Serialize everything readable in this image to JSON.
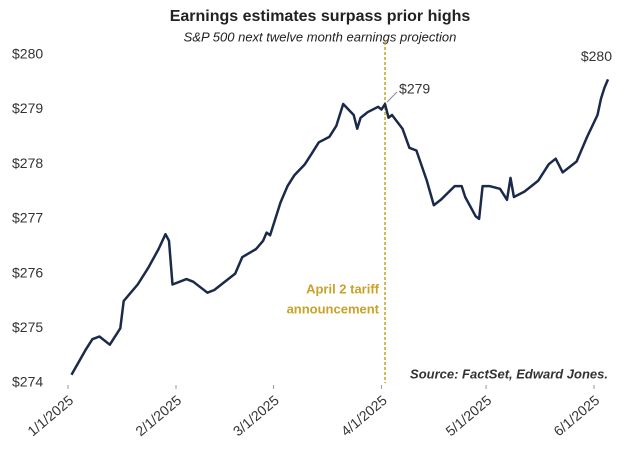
{
  "chart_data": {
    "type": "line",
    "title": "Earnings estimates surpass prior highs",
    "subtitle": "S&P 500 next twelve month earnings projection",
    "source": "Source: FactSet, Edward Jones.",
    "x": [
      "1/2/2025",
      "1/6/2025",
      "1/8/2025",
      "1/10/2025",
      "1/13/2025",
      "1/16/2025",
      "1/17/2025",
      "1/21/2025",
      "1/24/2025",
      "1/27/2025",
      "1/29/2025",
      "1/30/2025",
      "1/31/2025",
      "2/4/2025",
      "2/6/2025",
      "2/10/2025",
      "2/12/2025",
      "2/14/2025",
      "2/18/2025",
      "2/20/2025",
      "2/24/2025",
      "2/26/2025",
      "2/27/2025",
      "2/28/2025",
      "3/3/2025",
      "3/5/2025",
      "3/7/2025",
      "3/10/2025",
      "3/12/2025",
      "3/14/2025",
      "3/17/2025",
      "3/19/2025",
      "3/21/2025",
      "3/24/2025",
      "3/25/2025",
      "3/26/2025",
      "3/27/2025",
      "3/28/2025",
      "3/31/2025",
      "4/1/2025",
      "4/2/2025",
      "4/3/2025",
      "4/4/2025",
      "4/7/2025",
      "4/9/2025",
      "4/11/2025",
      "4/14/2025",
      "4/16/2025",
      "4/18/2025",
      "4/22/2025",
      "4/24/2025",
      "4/25/2025",
      "4/28/2025",
      "4/29/2025",
      "4/30/2025",
      "5/2/2025",
      "5/5/2025",
      "5/7/2025",
      "5/8/2025",
      "5/9/2025",
      "5/12/2025",
      "5/14/2025",
      "5/16/2025",
      "5/19/2025",
      "5/21/2025",
      "5/23/2025",
      "5/27/2025",
      "5/28/2025",
      "5/30/2025",
      "6/2/2025",
      "6/3/2025",
      "6/4/2025",
      "6/5/2025"
    ],
    "series": [
      {
        "name": "S&P 500 NTM earnings",
        "color": "#1b2a4a",
        "values": [
          274.15,
          274.6,
          274.8,
          274.85,
          274.7,
          275.0,
          275.5,
          275.8,
          276.1,
          276.45,
          276.72,
          276.6,
          275.8,
          275.9,
          275.85,
          275.65,
          275.7,
          275.8,
          276.0,
          276.3,
          276.45,
          276.6,
          276.75,
          276.7,
          277.3,
          277.6,
          277.8,
          278.0,
          278.2,
          278.4,
          278.5,
          278.7,
          279.1,
          278.9,
          278.65,
          278.85,
          278.9,
          278.95,
          279.05,
          279.0,
          279.1,
          278.85,
          278.9,
          278.65,
          278.3,
          278.25,
          277.7,
          277.25,
          277.35,
          277.6,
          277.6,
          277.4,
          277.05,
          277.0,
          277.6,
          277.6,
          277.55,
          277.35,
          277.75,
          277.4,
          277.5,
          277.6,
          277.7,
          278.0,
          278.1,
          277.85,
          278.05,
          278.2,
          278.5,
          278.9,
          279.2,
          279.4,
          279.55
        ]
      }
    ],
    "xlim": [
      "1/1/2025",
      "6/5/2025"
    ],
    "xticks": [
      "1/1/2025",
      "2/1/2025",
      "3/1/2025",
      "4/1/2025",
      "5/1/2025",
      "6/1/2025"
    ],
    "ylim": [
      274,
      280.3
    ],
    "yticks": [
      {
        "value": 274,
        "label": "$274"
      },
      {
        "value": 275,
        "label": "$275"
      },
      {
        "value": 276,
        "label": "$276"
      },
      {
        "value": 277,
        "label": "$277"
      },
      {
        "value": 278,
        "label": "$278"
      },
      {
        "value": 279,
        "label": "$279"
      },
      {
        "value": 280,
        "label": "$280"
      }
    ],
    "grid": false,
    "annotations": [
      {
        "text": "$279",
        "x": "4/2/2025",
        "y": 279.1
      },
      {
        "text": "$280",
        "x": "6/5/2025",
        "y": 279.55
      }
    ],
    "event": {
      "x": "4/2/2025",
      "color": "#c9a227",
      "text": [
        "April 2 tariff",
        "announcement"
      ]
    }
  }
}
